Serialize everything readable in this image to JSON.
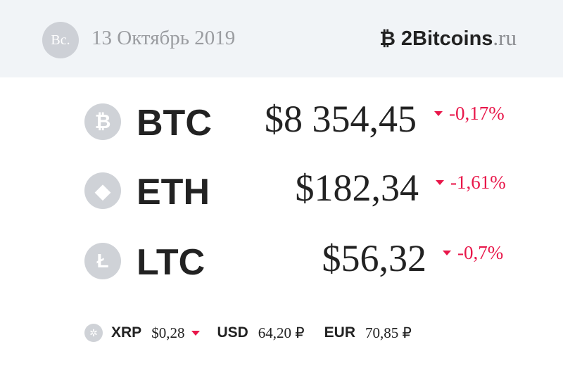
{
  "header": {
    "day": "Вс.",
    "date": "13 Октябрь 2019",
    "brand_icon": "bitcoin-strike-icon",
    "brand_name": "2Bitcoins",
    "brand_tld": ".ru"
  },
  "colors": {
    "header_bg": "#f1f4f7",
    "negative": "#e8174a",
    "icon_gray": "#cfd2d7"
  },
  "coins": [
    {
      "icon": "bitcoin-icon",
      "glyph": "₿",
      "ticker": "BTC",
      "price": "$8 354,45",
      "change": "-0,17%",
      "direction": "down"
    },
    {
      "icon": "ethereum-icon",
      "glyph": "◆",
      "ticker": "ETH",
      "price": "$182,34",
      "change": "-1,61%",
      "direction": "down"
    },
    {
      "icon": "litecoin-icon",
      "glyph": "Ł",
      "ticker": "LTC",
      "price": "$56,32",
      "change": "-0,7%",
      "direction": "down"
    }
  ],
  "bottom": {
    "xrp": {
      "icon": "ripple-icon",
      "glyph": "✲",
      "label": "XRP",
      "value": "$0,28",
      "direction": "down"
    },
    "usd": {
      "label": "USD",
      "value": "64,20 ₽"
    },
    "eur": {
      "label": "EUR",
      "value": "70,85 ₽"
    }
  }
}
